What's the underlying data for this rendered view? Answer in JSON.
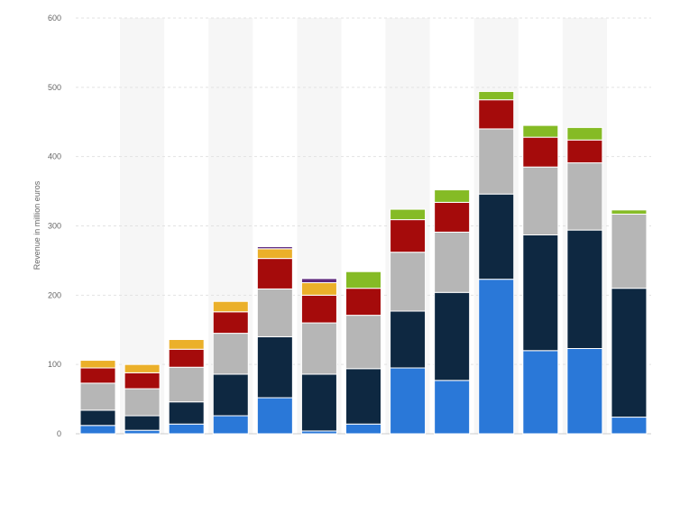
{
  "chart_data": {
    "type": "bar",
    "stacked": true,
    "title": "",
    "xlabel": "",
    "ylabel": "Revenue in million euros",
    "ylim": [
      0,
      600
    ],
    "yticks": [
      0,
      100,
      200,
      300,
      400,
      500,
      600
    ],
    "grid": true,
    "legend": "none",
    "categories": [
      "",
      "",
      "",
      "",
      "",
      "",
      "",
      "",
      "",
      "",
      "",
      "",
      ""
    ],
    "series": [
      {
        "color": "#2a78d8",
        "values": [
          12,
          5,
          14,
          26,
          52,
          4,
          14,
          95,
          77,
          223,
          120,
          123,
          24
        ]
      },
      {
        "color": "#0e2841",
        "values": [
          22,
          21,
          32,
          60,
          88,
          82,
          80,
          82,
          127,
          123,
          167,
          171,
          186
        ]
      },
      {
        "color": "#b6b6b6",
        "values": [
          39,
          39,
          50,
          59,
          69,
          74,
          77,
          85,
          87,
          94,
          98,
          97,
          107
        ]
      },
      {
        "color": "#a50b0b",
        "values": [
          22,
          23,
          26,
          31,
          44,
          40,
          39,
          47,
          43,
          42,
          43,
          33,
          0
        ]
      },
      {
        "color": "#ebb02a",
        "values": [
          11,
          12,
          14,
          15,
          14,
          18,
          0,
          0,
          0,
          0,
          0,
          0,
          0
        ]
      },
      {
        "color": "#5e2a7e",
        "values": [
          0,
          0,
          0,
          0,
          3,
          6,
          0,
          0,
          0,
          0,
          0,
          0,
          0
        ]
      },
      {
        "color": "#85bb25",
        "values": [
          0,
          0,
          0,
          0,
          0,
          0,
          24,
          15,
          18,
          12,
          17,
          18,
          6
        ]
      }
    ]
  }
}
